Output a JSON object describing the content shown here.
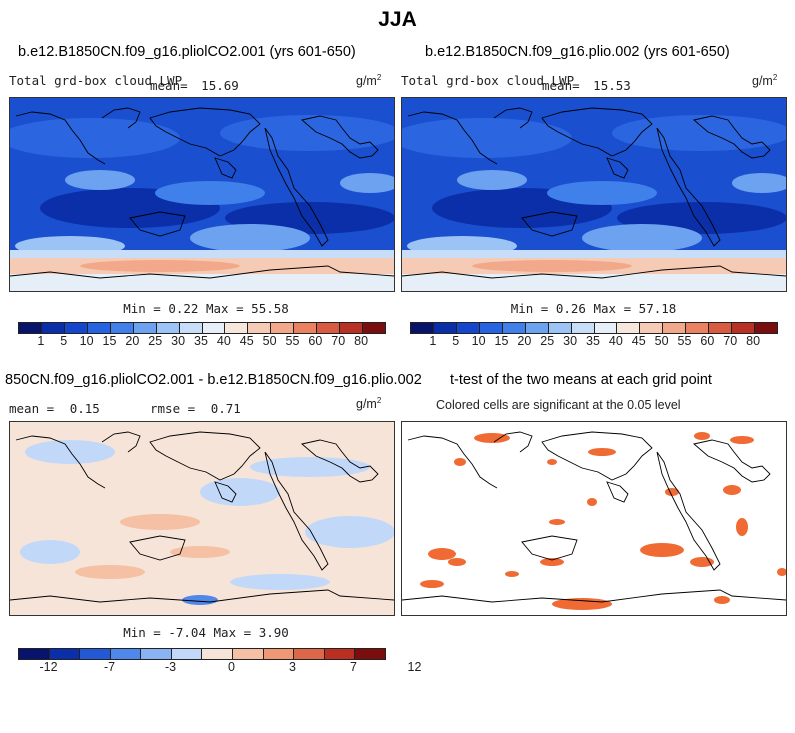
{
  "figure_title": "JJA",
  "colors": {
    "sequential_cmap": [
      "#08146b",
      "#0a2fa8",
      "#1447cc",
      "#2563e0",
      "#3f80ea",
      "#6da2f0",
      "#9cc3f5",
      "#c8ddf8",
      "#e6eef7",
      "#f6e6dc",
      "#f6cbb5",
      "#f2a98b",
      "#ea8262",
      "#d85a40",
      "#b73225",
      "#7a0d0d"
    ],
    "diverging_cmap": [
      "#08146b",
      "#0a2fa8",
      "#2459d6",
      "#5087ea",
      "#89b3f2",
      "#c2d8f8",
      "#f7e4d8",
      "#f5c0a3",
      "#ee9876",
      "#dd6749",
      "#bb2f23",
      "#7a0d0d"
    ],
    "significance": "#f06a34",
    "coast": "#000000"
  },
  "chart_data": [
    {
      "type": "heatmap",
      "panel": "top-left",
      "title": "b.e12.B1850CN.f09_g16.pliolCO2.001 (yrs 601-650)",
      "field_label": "Total grd-box cloud LWP",
      "mean_label": "mean=",
      "mean": "15.69",
      "units": "g/m",
      "units_sup": "2",
      "min_label": "Min =",
      "min": "0.22",
      "max_label": "Max =",
      "max": "55.58",
      "colorbar_labels": [
        "1",
        "5",
        "10",
        "15",
        "20",
        "25",
        "30",
        "35",
        "40",
        "45",
        "50",
        "55",
        "60",
        "70",
        "80"
      ]
    },
    {
      "type": "heatmap",
      "panel": "top-right",
      "title": "b.e12.B1850CN.f09_g16.plio.002 (yrs 601-650)",
      "field_label": "Total grd-box cloud LWP",
      "mean_label": "mean=",
      "mean": "15.53",
      "units": "g/m",
      "units_sup": "2",
      "min_label": "Min =",
      "min": "0.26",
      "max_label": "Max =",
      "max": "57.18",
      "colorbar_labels": [
        "1",
        "5",
        "10",
        "15",
        "20",
        "25",
        "30",
        "35",
        "40",
        "45",
        "50",
        "55",
        "60",
        "70",
        "80"
      ]
    },
    {
      "type": "heatmap",
      "panel": "bottom-left",
      "title": "850CN.f09_g16.pliolCO2.001 - b.e12.B1850CN.f09_g16.plio.002",
      "mean_label": "mean =",
      "mean": "0.15",
      "rmse_label": "rmse =",
      "rmse": "0.71",
      "units": "g/m",
      "units_sup": "2",
      "min_label": "Min =",
      "min": "-7.04",
      "max_label": "Max =",
      "max": "3.90",
      "colorbar_labels": [
        "-12",
        "-7",
        "-3",
        "0",
        "3",
        "7",
        "12"
      ]
    },
    {
      "type": "heatmap",
      "panel": "bottom-right",
      "title": "t-test of the two means at each grid point",
      "subtitle": "Colored cells are significant at the 0.05 level"
    }
  ]
}
